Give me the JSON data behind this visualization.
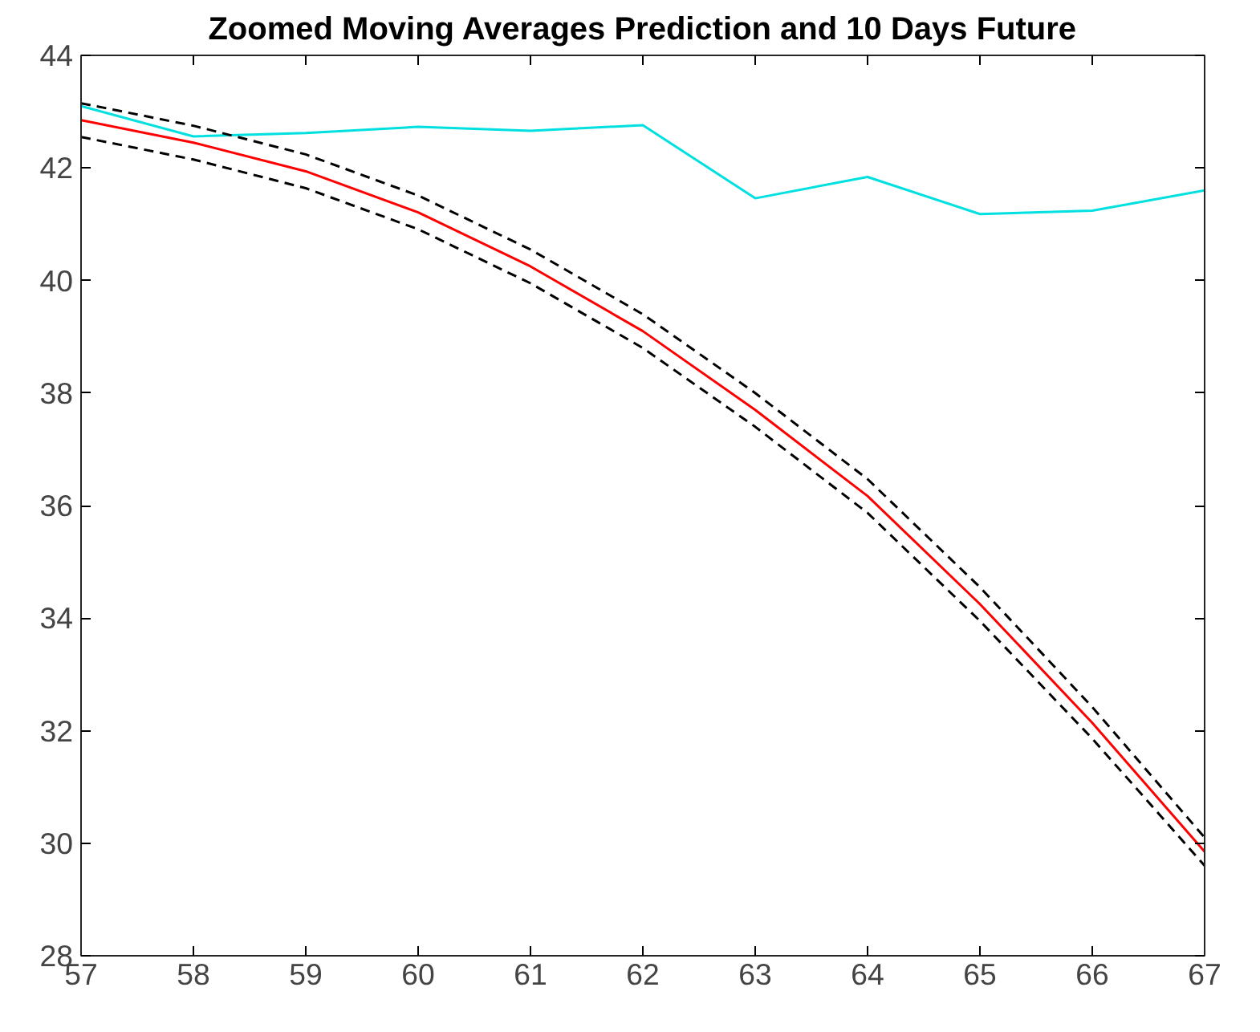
{
  "chart_data": {
    "type": "line",
    "title": "Zoomed Moving Averages Prediction and 10 Days Future",
    "x": [
      57,
      58,
      59,
      60,
      61,
      62,
      63,
      64,
      65,
      66,
      67
    ],
    "series": [
      {
        "color": "#00e0e0",
        "values": [
          43.1,
          42.56,
          42.62,
          42.73,
          42.66,
          42.76,
          41.46,
          41.84,
          41.18,
          41.24,
          41.6
        ]
      },
      {
        "color": "#000000",
        "line_style": "dashed",
        "values": [
          43.15,
          42.75,
          42.24,
          41.51,
          40.55,
          39.4,
          38.0,
          36.47,
          34.55,
          32.42,
          30.1
        ]
      },
      {
        "color": "#000000",
        "line_style": "dashed",
        "values": [
          42.55,
          42.15,
          41.64,
          40.91,
          39.95,
          38.8,
          37.4,
          35.87,
          33.95,
          31.86,
          29.6
        ]
      },
      {
        "color": "#ff0000",
        "values": [
          42.85,
          42.45,
          41.94,
          41.21,
          40.25,
          39.1,
          37.7,
          36.17,
          34.25,
          32.14,
          29.85
        ]
      }
    ],
    "xlim": [
      57,
      67
    ],
    "xticks": [
      57,
      58,
      59,
      60,
      61,
      62,
      63,
      64,
      65,
      66,
      67
    ],
    "ylim": [
      28,
      44
    ],
    "yticks": [
      28,
      30,
      32,
      34,
      36,
      38,
      40,
      42,
      44
    ],
    "grid": false,
    "line_style": "solid"
  }
}
